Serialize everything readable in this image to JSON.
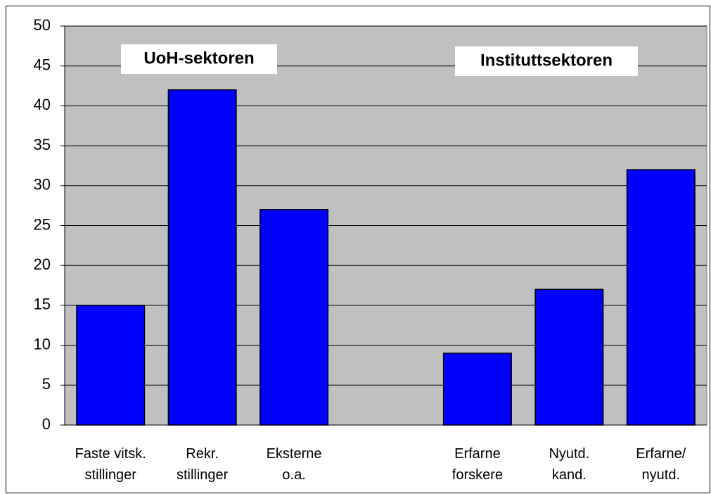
{
  "chart_data": {
    "type": "bar",
    "categories": [
      "Faste vitsk.\nstillinger",
      "Rekr.\nstillinger",
      "Eksterne\no.a.",
      null,
      "Erfarne\nforskere",
      "Nyutd.\nkand.",
      "Erfarne/\nnyutd."
    ],
    "values": [
      15,
      42,
      27,
      null,
      9,
      17,
      32
    ],
    "color": "#0000ff",
    "ylim": [
      0,
      50
    ],
    "yticks": [
      0,
      5,
      10,
      15,
      20,
      25,
      30,
      35,
      40,
      45,
      50
    ],
    "grid": true,
    "annotations": [
      "UoH-sektoren",
      "Instituttsektoren"
    ]
  }
}
